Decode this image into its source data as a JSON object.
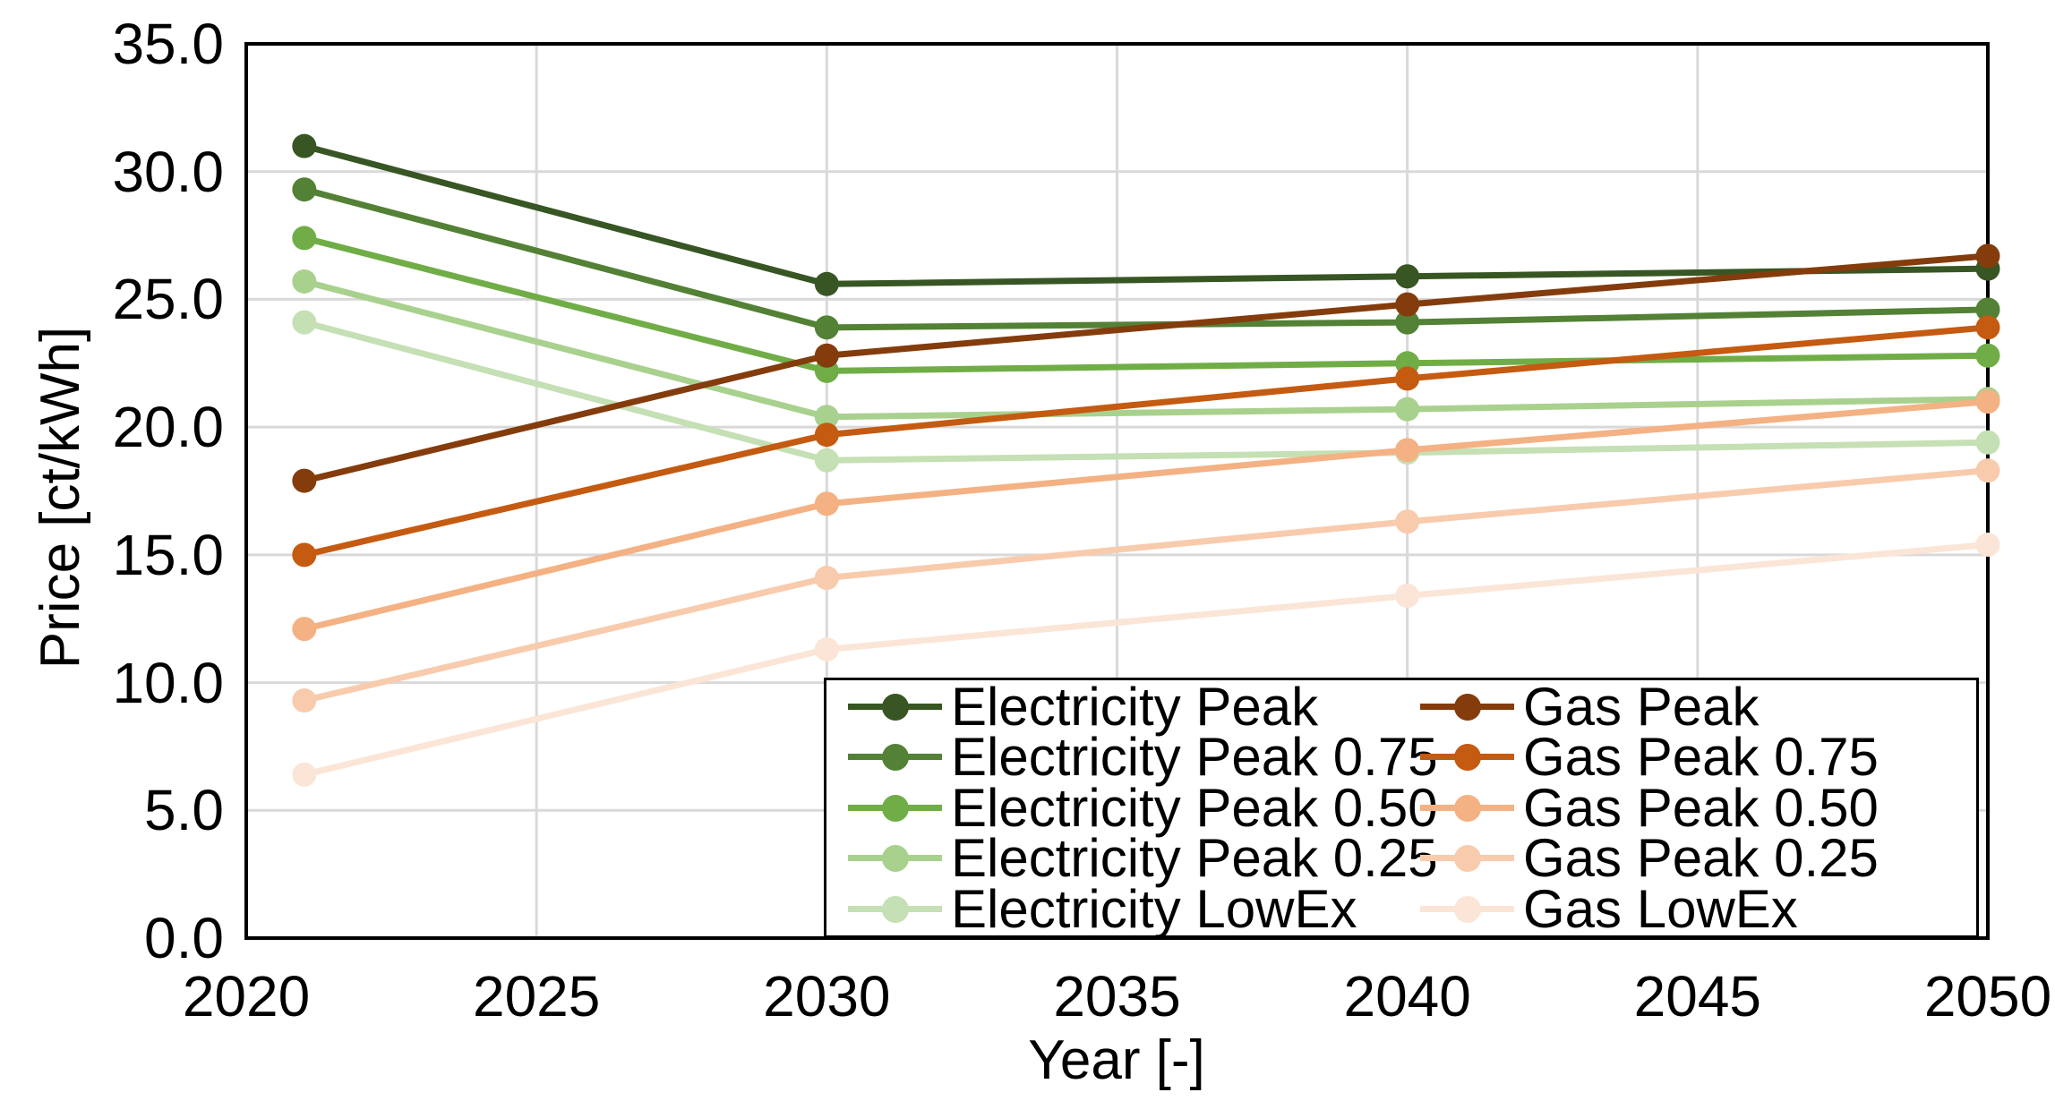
{
  "chart_data": {
    "type": "line",
    "title": "",
    "xlabel": "Year [-]",
    "ylabel": "Price [ct/kWh]",
    "xlim": [
      2020,
      2050
    ],
    "ylim": [
      0,
      35
    ],
    "grid": true,
    "legend_position": "inside-bottom-right, 2 columns (Electricity | Gas)",
    "x": [
      2021,
      2030,
      2040,
      2050
    ],
    "x_ticks": [
      {
        "label": "2020",
        "value": 2020
      },
      {
        "label": "2025",
        "value": 2025
      },
      {
        "label": "2030",
        "value": 2030
      },
      {
        "label": "2035",
        "value": 2035
      },
      {
        "label": "2040",
        "value": 2040
      },
      {
        "label": "2045",
        "value": 2045
      },
      {
        "label": "2050",
        "value": 2050
      }
    ],
    "y_ticks": [
      {
        "label": "0.0",
        "value": 0
      },
      {
        "label": "5.0",
        "value": 5
      },
      {
        "label": "10.0",
        "value": 10
      },
      {
        "label": "15.0",
        "value": 15
      },
      {
        "label": "20.0",
        "value": 20
      },
      {
        "label": "25.0",
        "value": 25
      },
      {
        "label": "30.0",
        "value": 30
      },
      {
        "label": "35.0",
        "value": 35
      }
    ],
    "colors": {
      "grid": "#D9D9D9",
      "axis_box": "#000000",
      "text": "#000000"
    },
    "series": [
      {
        "name": "Electricity Peak",
        "color": "#375623",
        "values": [
          31.0,
          25.6,
          25.9,
          26.2
        ]
      },
      {
        "name": "Electricity Peak 0.75",
        "color": "#538135",
        "values": [
          29.3,
          23.9,
          24.1,
          24.6
        ]
      },
      {
        "name": "Electricity Peak 0.50",
        "color": "#70AD47",
        "values": [
          27.4,
          22.2,
          22.5,
          22.8
        ]
      },
      {
        "name": "Electricity Peak 0.25",
        "color": "#A9D18E",
        "values": [
          25.7,
          20.4,
          20.7,
          21.1
        ]
      },
      {
        "name": "Electricity LowEx",
        "color": "#C5E0B4",
        "values": [
          24.1,
          18.7,
          19.0,
          19.4
        ]
      },
      {
        "name": "Gas Peak",
        "color": "#843C0C",
        "values": [
          17.9,
          22.8,
          24.8,
          26.7
        ]
      },
      {
        "name": "Gas Peak 0.75",
        "color": "#C55A11",
        "values": [
          15.0,
          19.7,
          21.9,
          23.9
        ]
      },
      {
        "name": "Gas Peak 0.50",
        "color": "#F4B183",
        "values": [
          12.1,
          17.0,
          19.1,
          21.0
        ]
      },
      {
        "name": "Gas Peak 0.25",
        "color": "#F8CBAD",
        "values": [
          9.3,
          14.1,
          16.3,
          18.3
        ]
      },
      {
        "name": "Gas LowEx",
        "color": "#FBE5D6",
        "values": [
          6.4,
          11.3,
          13.4,
          15.4
        ]
      }
    ]
  }
}
